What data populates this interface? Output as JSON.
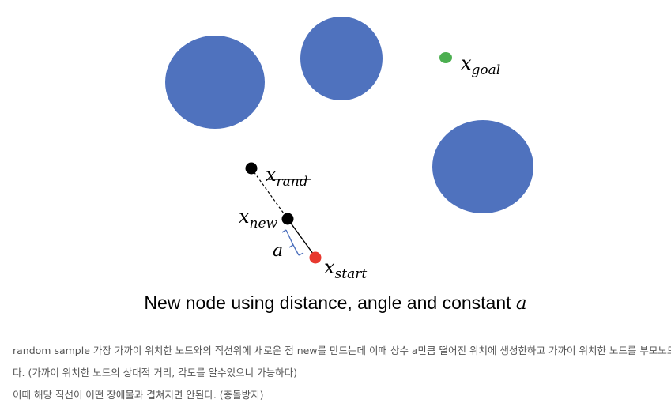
{
  "diagram": {
    "labels": {
      "goal": {
        "base": "x",
        "sub": "goal"
      },
      "rand": {
        "base": "x",
        "sub": "rand"
      },
      "new": {
        "base": "x",
        "sub": "new"
      },
      "start": {
        "base": "x",
        "sub": "start"
      },
      "step": "a"
    },
    "colors": {
      "obstacle": "#4f72be",
      "goal": "#4caf50",
      "start": "#e8392f",
      "node": "#000000",
      "bracket": "#4f72be"
    }
  },
  "caption": {
    "text": "New node using distance, angle and constant",
    "variable": "a"
  },
  "description": {
    "line1": "random sample 가장 가까이 위치한 노드와의 직선위에 새로운 점 new를 만드는데 이때 상수 a만큼 떨어진 위치에 생성한하고 가까이 위치한 노드를 부모노드로 한",
    "line2": "다. (가까이 위치한 노드의 상대적 거리, 각도를 알수있으니 가능하다)",
    "line3": "이때 해당 직선이 어떤 장애물과 겹쳐지면 안된다. (충돌방지)"
  }
}
